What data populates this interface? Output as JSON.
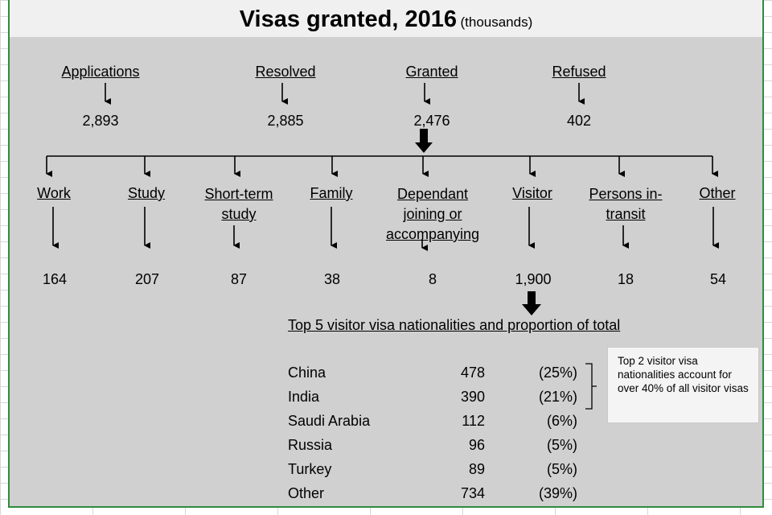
{
  "title": {
    "main": "Visas granted, 2016",
    "sub": "(thousands)"
  },
  "top_stages": [
    {
      "label": "Applications",
      "value": "2,893"
    },
    {
      "label": "Resolved",
      "value": "2,885"
    },
    {
      "label": "Granted",
      "value": "2,476"
    },
    {
      "label": "Refused",
      "value": "402"
    }
  ],
  "categories": [
    {
      "label": "Work",
      "value": "164"
    },
    {
      "label": "Study",
      "value": "207"
    },
    {
      "label": "Short-term study",
      "value": "87"
    },
    {
      "label": "Family",
      "value": "38"
    },
    {
      "label": "Dependant joining or accompanying",
      "value": "8"
    },
    {
      "label": "Visitor",
      "value": "1,900"
    },
    {
      "label": "Persons in-transit",
      "value": "18"
    },
    {
      "label": "Other",
      "value": "54"
    }
  ],
  "nationalities_heading": "Top 5 visitor visa nationalities and proportion of total",
  "nationalities": [
    {
      "name": "China",
      "value": "478",
      "share": "(25%)"
    },
    {
      "name": "India",
      "value": "390",
      "share": "(21%)"
    },
    {
      "name": "Saudi Arabia",
      "value": "112",
      "share": "(6%)"
    },
    {
      "name": "Russia",
      "value": "96",
      "share": "(5%)"
    },
    {
      "name": "Turkey",
      "value": "89",
      "share": "(5%)"
    },
    {
      "name": "Other",
      "value": "734",
      "share": "(39%)"
    }
  ],
  "note": "Top 2 visitor visa nationalities account for over 40% of all visitor visas",
  "colors": {
    "panel": "#d0d0d0",
    "title_bar": "#f0f0f0",
    "border": "#2e8b3e"
  }
}
